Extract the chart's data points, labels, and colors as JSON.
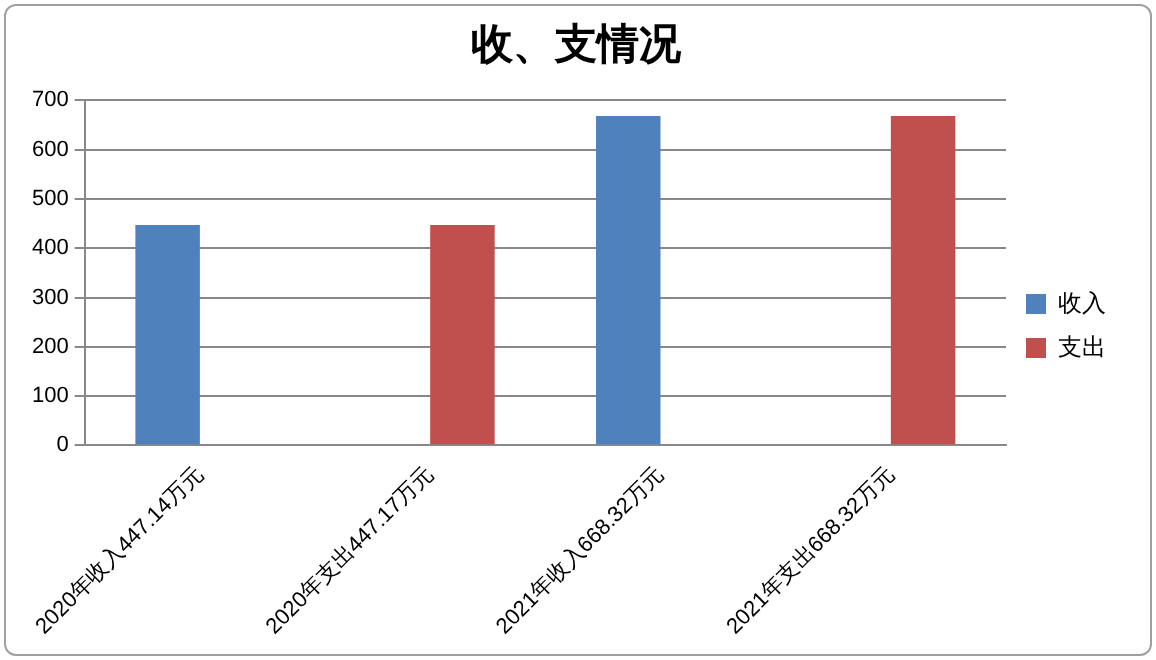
{
  "chart_data": {
    "type": "bar",
    "title": "收、支情况",
    "categories": [
      "2020年收入447.14万元",
      "2020年支出447.17万元",
      "2021年收入668.32万元",
      "2021年支出668.32万元"
    ],
    "series": [
      {
        "name": "收入",
        "color": "#4f81bd",
        "values": [
          447.14,
          null,
          668.32,
          null
        ]
      },
      {
        "name": "支出",
        "color": "#c0504d",
        "values": [
          null,
          447.17,
          null,
          668.32
        ]
      }
    ],
    "ylim": [
      0,
      700
    ],
    "yticks": [
      0,
      100,
      200,
      300,
      400,
      500,
      600,
      700
    ],
    "grid": "y",
    "legend": "right"
  }
}
